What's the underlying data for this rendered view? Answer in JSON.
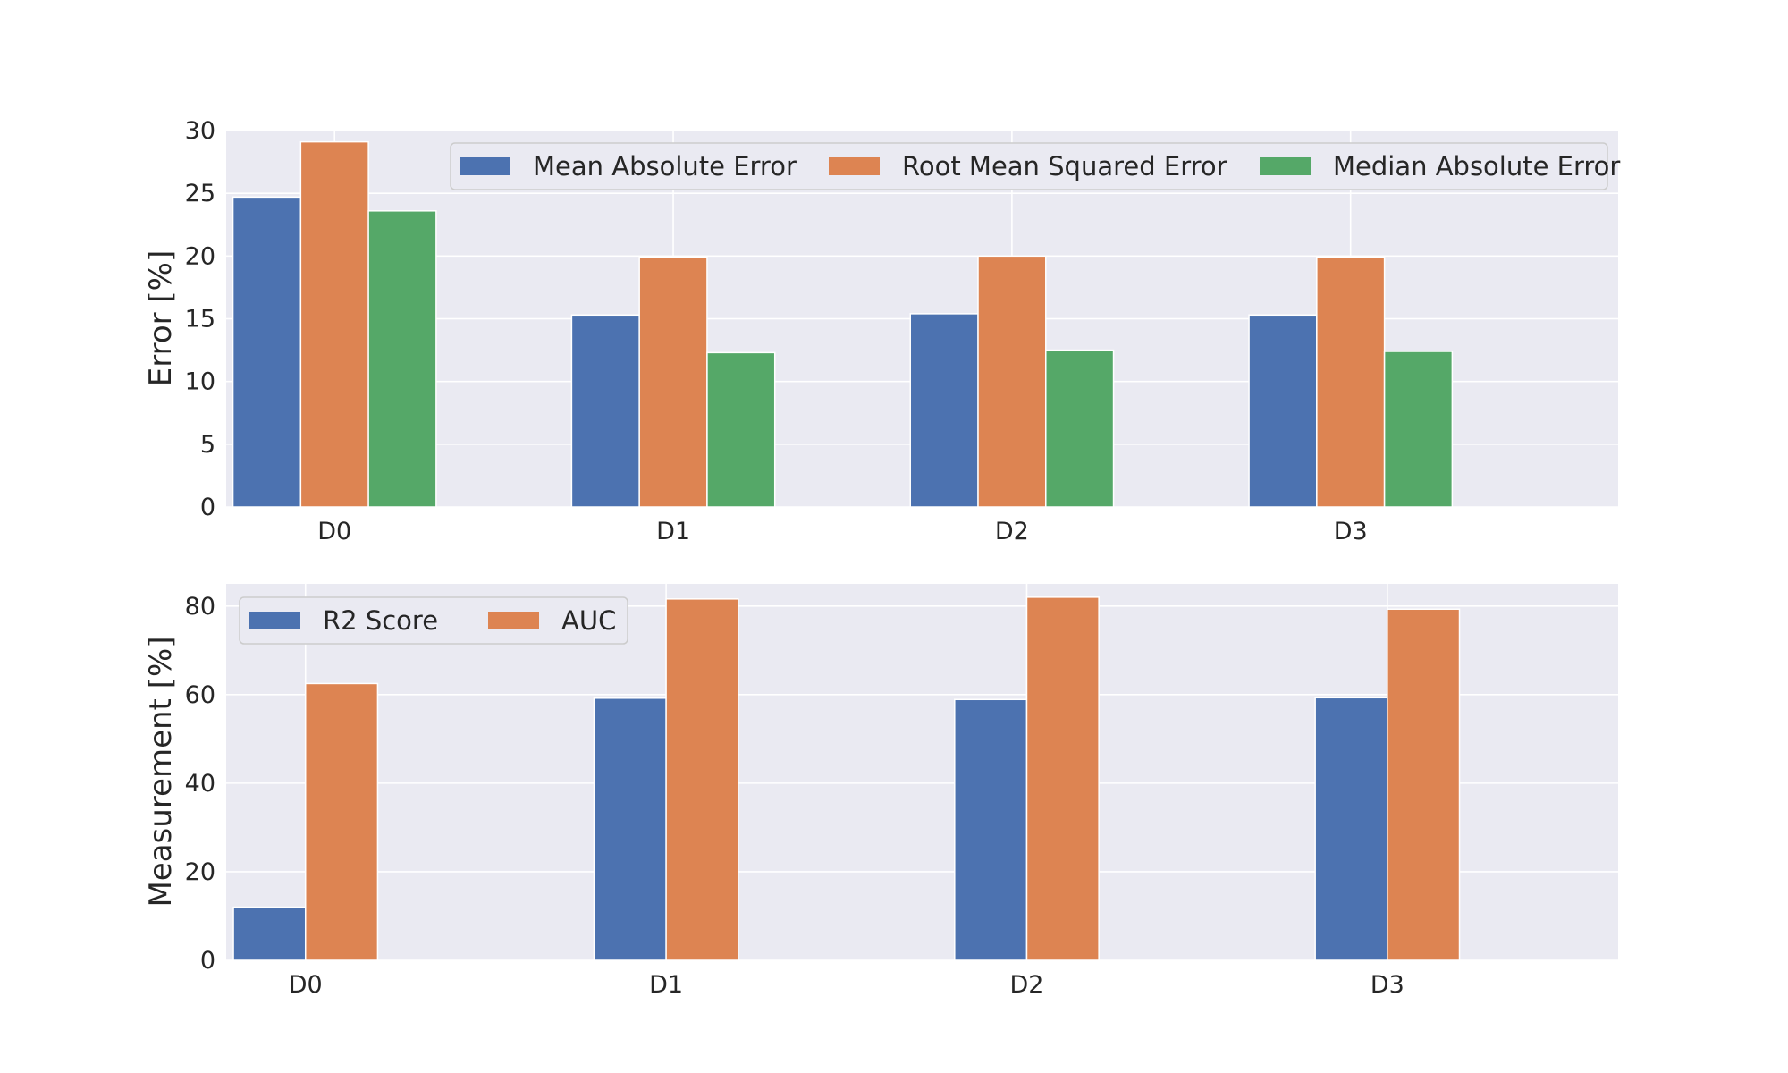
{
  "chart_data": [
    {
      "type": "bar",
      "categories": [
        "D0",
        "D1",
        "D2",
        "D3"
      ],
      "series": [
        {
          "name": "Mean Absolute Error",
          "values": [
            24.7,
            15.3,
            15.4,
            15.3
          ],
          "color": "#4c72b0"
        },
        {
          "name": "Root Mean Squared Error",
          "values": [
            29.1,
            19.9,
            20.0,
            19.9
          ],
          "color": "#dd8452"
        },
        {
          "name": "Median Absolute Error",
          "values": [
            23.6,
            12.3,
            12.5,
            12.4
          ],
          "color": "#55a868"
        }
      ],
      "title": "",
      "xlabel": "",
      "ylabel": "Error [%]",
      "ylim": [
        0,
        30
      ],
      "yticks": [
        0,
        5,
        10,
        15,
        20,
        25,
        30
      ],
      "grid": true,
      "legend": {
        "placement": "upper-right",
        "columns": 3
      }
    },
    {
      "type": "bar",
      "categories": [
        "D0",
        "D1",
        "D2",
        "D3"
      ],
      "series": [
        {
          "name": "R2 Score",
          "values": [
            12.0,
            59.2,
            58.9,
            59.3
          ],
          "color": "#4c72b0"
        },
        {
          "name": "AUC",
          "values": [
            62.5,
            81.6,
            82.0,
            79.3
          ],
          "color": "#dd8452"
        }
      ],
      "title": "",
      "xlabel": "",
      "ylabel": "Measurement [%]",
      "ylim": [
        0,
        85
      ],
      "yticks": [
        0,
        20,
        40,
        60,
        80
      ],
      "grid": true,
      "legend": {
        "placement": "upper-left",
        "columns": 2
      }
    }
  ]
}
